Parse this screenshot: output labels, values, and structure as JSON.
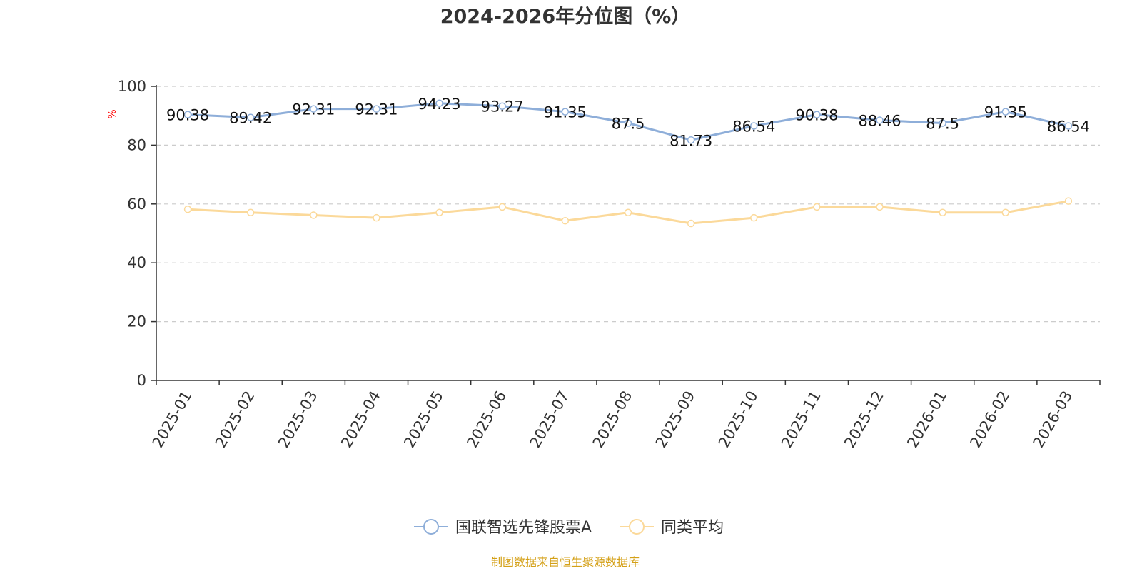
{
  "chart_data": {
    "type": "line",
    "title": "2024-2026年分位图（%）",
    "ylabel": "%",
    "ylim": [
      0,
      100
    ],
    "yticks": [
      "0",
      "20",
      "40",
      "60",
      "80",
      "100"
    ],
    "grid": true,
    "categories": [
      "2025-01",
      "2025-02",
      "2025-03",
      "2025-04",
      "2025-05",
      "2025-06",
      "2025-07",
      "2025-08",
      "2025-09",
      "2025-10",
      "2025-11",
      "2025-12",
      "2026-01",
      "2026-02",
      "2026-03"
    ],
    "series": [
      {
        "name": "国联智选先锋股票A",
        "color": "#8eaed9",
        "show_labels": true,
        "values": [
          90.38,
          89.42,
          92.31,
          92.31,
          94.23,
          93.27,
          91.35,
          87.5,
          81.73,
          86.54,
          90.38,
          88.46,
          87.5,
          91.35,
          86.54
        ],
        "labels": [
          "90.38",
          "89.42",
          "92.31",
          "92.31",
          "94.23",
          "93.27",
          "91.35",
          "87.5",
          "81.73",
          "86.54",
          "90.38",
          "88.46",
          "87.5",
          "91.35",
          "86.54"
        ]
      },
      {
        "name": "同类平均",
        "color": "#fbd99a",
        "show_labels": false,
        "values": [
          58.2,
          57.1,
          56.2,
          55.3,
          57.1,
          59.0,
          54.3,
          57.1,
          53.4,
          55.3,
          59.0,
          59.0,
          57.1,
          57.1,
          61.0
        ]
      }
    ],
    "legend_position": "bottom-center",
    "source": "制图数据来自恒生聚源数据库",
    "colors": {
      "title": "#333333",
      "ylabel": "#ff0000",
      "axis": "#333333",
      "grid": "#cccccc",
      "source": "#d4a017"
    }
  }
}
